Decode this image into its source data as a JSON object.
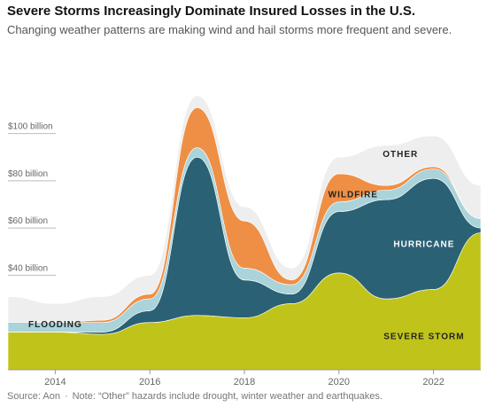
{
  "header": {
    "title": "Severe Storms Increasingly Dominate Insured Losses in the U.S.",
    "subtitle": "Changing weather patterns are making wind and hail storms more frequent and severe."
  },
  "footer": {
    "source": "Source: Aon",
    "separator": "·",
    "note": "Note: “Other” hazards include drought, winter weather and earthquakes."
  },
  "chart_data": {
    "type": "area",
    "stacked": true,
    "x": [
      2013,
      2014,
      2015,
      2016,
      2017,
      2018,
      2019,
      2020,
      2021,
      2022,
      2023
    ],
    "ylim": [
      0,
      140
    ],
    "y_ticks": [
      {
        "value": 40,
        "label": "$40 billion"
      },
      {
        "value": 60,
        "label": "$60 billion"
      },
      {
        "value": 80,
        "label": "$80 billion"
      },
      {
        "value": 100,
        "label": "$100 billion"
      }
    ],
    "x_ticks": [
      {
        "value": 2014,
        "label": "2014"
      },
      {
        "value": 2016,
        "label": "2016"
      },
      {
        "value": 2018,
        "label": "2018"
      },
      {
        "value": 2020,
        "label": "2020"
      },
      {
        "value": 2022,
        "label": "2022"
      }
    ],
    "grid": false,
    "series": [
      {
        "name": "SEVERE STORM",
        "color": "#c0c41a",
        "values": [
          16,
          16,
          15,
          20,
          23,
          22,
          28,
          41,
          30,
          34,
          58
        ]
      },
      {
        "name": "HURRICANE",
        "color": "#2b6175",
        "values": [
          0,
          0,
          1,
          5,
          67,
          16,
          4,
          26,
          42,
          47,
          2
        ]
      },
      {
        "name": "FLOODING",
        "color": "#aad3da",
        "values": [
          4,
          4,
          4,
          5,
          4,
          5,
          4,
          4,
          4,
          4,
          4
        ]
      },
      {
        "name": "WILDFIRE",
        "color": "#ef8f45",
        "values": [
          0,
          0,
          1,
          2,
          17,
          20,
          2,
          12,
          2,
          1,
          0
        ]
      },
      {
        "name": "OTHER",
        "color": "#eeeeee",
        "values": [
          11,
          8,
          10,
          8,
          5,
          6,
          5,
          7,
          17,
          13,
          14
        ]
      }
    ],
    "labels": [
      {
        "text": "FLOODING",
        "color": "#222222"
      },
      {
        "text": "WILDFIRE",
        "color": "#222222"
      },
      {
        "text": "OTHER",
        "color": "#222222"
      },
      {
        "text": "HURRICANE",
        "color": "#ffffff"
      },
      {
        "text": "SEVERE STORM",
        "color": "#222222"
      }
    ]
  }
}
